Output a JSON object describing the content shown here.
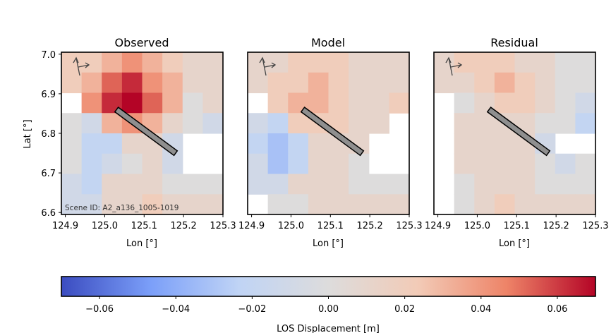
{
  "chart_data": [
    {
      "type": "heatmap",
      "panel": "observed",
      "title": "Observed",
      "xlabel": "Lon [°]",
      "ylabel": "Lat [°]",
      "xlim": [
        124.89,
        125.3
      ],
      "ylim": [
        6.595,
        7.005
      ],
      "xticks": [
        "124.9",
        "125.0",
        "125.1",
        "125.2",
        "125.3"
      ],
      "yticks": [
        "6.6",
        "6.7",
        "6.8",
        "6.9",
        "7.0"
      ],
      "annotation": "Scene ID: A2_a136_1005-1019",
      "fault_trace": [
        [
          125.03,
          6.86
        ],
        [
          125.18,
          6.75
        ]
      ]
    },
    {
      "type": "heatmap",
      "panel": "model",
      "title": "Model",
      "xlabel": "Lon [°]",
      "xlim": [
        124.89,
        125.3
      ],
      "ylim": [
        6.595,
        7.005
      ],
      "xticks": [
        "124.9",
        "125.0",
        "125.1",
        "125.2",
        "125.3"
      ],
      "fault_trace": [
        [
          125.03,
          6.86
        ],
        [
          125.18,
          6.75
        ]
      ]
    },
    {
      "type": "heatmap",
      "panel": "residual",
      "title": "Residual",
      "xlabel": "Lon [°]",
      "xlim": [
        124.89,
        125.3
      ],
      "ylim": [
        6.595,
        7.005
      ],
      "xticks": [
        "124.9",
        "125.0",
        "125.1",
        "125.2",
        "125.3"
      ],
      "fault_trace": [
        [
          125.03,
          6.86
        ],
        [
          125.18,
          6.75
        ]
      ]
    }
  ],
  "colorbar": {
    "label": "LOS Displacement [m]",
    "range": [
      -0.07,
      0.07
    ],
    "ticks": [
      "−0.06",
      "−0.04",
      "−0.02",
      "0.00",
      "0.02",
      "0.04",
      "0.06"
    ],
    "tick_values": [
      -0.06,
      -0.04,
      -0.02,
      0.0,
      0.02,
      0.04,
      0.06
    ],
    "colormap": "coolwarm",
    "colors": [
      "#3b4cc0",
      "#7b9ff9",
      "#c0d4f5",
      "#dddcdc",
      "#f2cbb7",
      "#ee8468",
      "#b40426"
    ]
  },
  "masked_color": "#ffffff"
}
